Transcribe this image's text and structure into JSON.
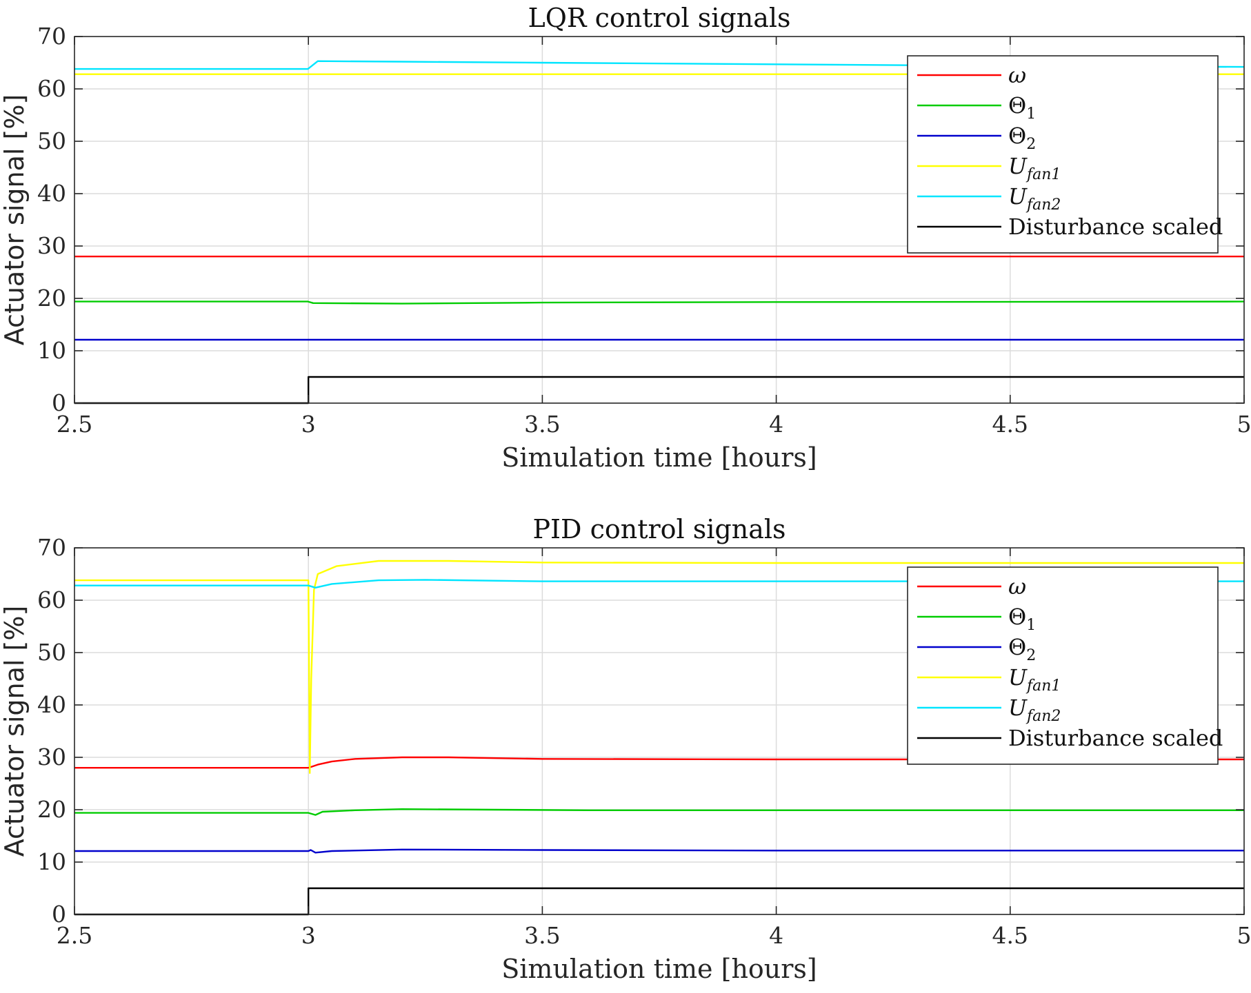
{
  "chart_data": [
    {
      "type": "line",
      "title": "LQR control signals",
      "xlabel": "Simulation time [hours]",
      "ylabel": "Actuator signal [%]",
      "xlim": [
        2.5,
        5
      ],
      "ylim": [
        0,
        70
      ],
      "xticks": [
        "2.5",
        "3",
        "3.5",
        "4",
        "4.5",
        "5"
      ],
      "yticks": [
        "0",
        "10",
        "20",
        "30",
        "40",
        "50",
        "60",
        "70"
      ],
      "grid": true,
      "legend_position": "top-right",
      "series": [
        {
          "name": "ω",
          "color": "#ff0000",
          "points": [
            [
              2.5,
              28
            ],
            [
              5,
              28
            ]
          ]
        },
        {
          "name": "Θ1",
          "color": "#00cc00",
          "points": [
            [
              2.5,
              19.4
            ],
            [
              2.999,
              19.4
            ],
            [
              3.01,
              19.1
            ],
            [
              3.2,
              19.0
            ],
            [
              3.5,
              19.2
            ],
            [
              4.0,
              19.3
            ],
            [
              5,
              19.4
            ]
          ]
        },
        {
          "name": "Θ2",
          "color": "#0000cc",
          "points": [
            [
              2.5,
              12.1
            ],
            [
              5,
              12.1
            ]
          ]
        },
        {
          "name": "U_fan1",
          "color": "#ffff00",
          "points": [
            [
              2.5,
              62.8
            ],
            [
              5,
              62.8
            ]
          ]
        },
        {
          "name": "U_fan2",
          "color": "#00e5ff",
          "points": [
            [
              2.5,
              63.8
            ],
            [
              2.999,
              63.8
            ],
            [
              3.02,
              65.3
            ],
            [
              3.2,
              65.2
            ],
            [
              3.5,
              65.0
            ],
            [
              4.0,
              64.7
            ],
            [
              4.5,
              64.4
            ],
            [
              5,
              64.2
            ]
          ]
        },
        {
          "name": "Disturbance scaled",
          "color": "#000000",
          "points": [
            [
              2.5,
              0
            ],
            [
              3.0,
              0
            ],
            [
              3.0,
              5
            ],
            [
              5,
              5
            ]
          ]
        }
      ]
    },
    {
      "type": "line",
      "title": "PID control signals",
      "xlabel": "Simulation time [hours]",
      "ylabel": "Actuator signal [%]",
      "xlim": [
        2.5,
        5
      ],
      "ylim": [
        0,
        70
      ],
      "xticks": [
        "2.5",
        "3",
        "3.5",
        "4",
        "4.5",
        "5"
      ],
      "yticks": [
        "0",
        "10",
        "20",
        "30",
        "40",
        "50",
        "60",
        "70"
      ],
      "grid": true,
      "legend_position": "top-right",
      "series": [
        {
          "name": "ω",
          "color": "#ff0000",
          "points": [
            [
              2.5,
              28.0
            ],
            [
              3.0,
              28.0
            ],
            [
              3.02,
              28.6
            ],
            [
              3.05,
              29.2
            ],
            [
              3.1,
              29.7
            ],
            [
              3.2,
              30.0
            ],
            [
              3.3,
              30.0
            ],
            [
              3.5,
              29.7
            ],
            [
              4.0,
              29.6
            ],
            [
              5,
              29.6
            ]
          ]
        },
        {
          "name": "Θ1",
          "color": "#00cc00",
          "points": [
            [
              2.5,
              19.4
            ],
            [
              3.0,
              19.4
            ],
            [
              3.015,
              19.0
            ],
            [
              3.03,
              19.6
            ],
            [
              3.1,
              19.9
            ],
            [
              3.2,
              20.1
            ],
            [
              3.4,
              20.0
            ],
            [
              3.6,
              19.9
            ],
            [
              5,
              19.9
            ]
          ]
        },
        {
          "name": "Θ2",
          "color": "#0000cc",
          "points": [
            [
              2.5,
              12.1
            ],
            [
              3.0,
              12.1
            ],
            [
              3.005,
              12.3
            ],
            [
              3.015,
              11.8
            ],
            [
              3.05,
              12.1
            ],
            [
              3.2,
              12.4
            ],
            [
              3.5,
              12.3
            ],
            [
              4.0,
              12.2
            ],
            [
              5,
              12.2
            ]
          ]
        },
        {
          "name": "U_fan1",
          "color": "#ffff00",
          "points": [
            [
              2.5,
              63.8
            ],
            [
              3.0,
              63.8
            ],
            [
              3.003,
              27.0
            ],
            [
              3.006,
              45.0
            ],
            [
              3.012,
              62.0
            ],
            [
              3.02,
              65.0
            ],
            [
              3.06,
              66.5
            ],
            [
              3.15,
              67.5
            ],
            [
              3.3,
              67.5
            ],
            [
              3.5,
              67.2
            ],
            [
              4.0,
              67.1
            ],
            [
              5,
              67.1
            ]
          ]
        },
        {
          "name": "U_fan2",
          "color": "#00e5ff",
          "points": [
            [
              2.5,
              62.8
            ],
            [
              3.0,
              62.8
            ],
            [
              3.015,
              62.4
            ],
            [
              3.05,
              63.1
            ],
            [
              3.15,
              63.8
            ],
            [
              3.25,
              63.9
            ],
            [
              3.5,
              63.6
            ],
            [
              4.0,
              63.6
            ],
            [
              5,
              63.6
            ]
          ]
        },
        {
          "name": "Disturbance scaled",
          "color": "#000000",
          "points": [
            [
              2.5,
              0
            ],
            [
              3.0,
              0
            ],
            [
              3.0,
              5
            ],
            [
              5,
              5
            ]
          ]
        }
      ]
    }
  ]
}
